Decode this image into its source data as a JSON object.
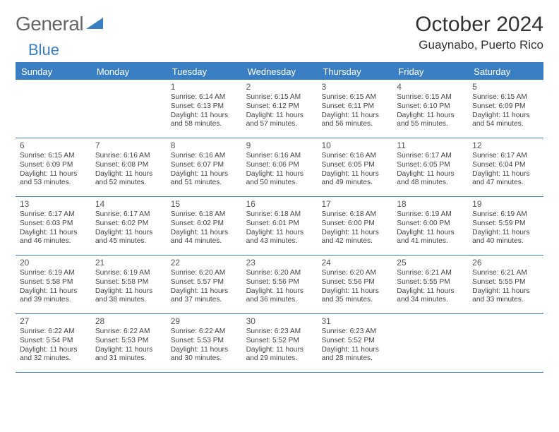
{
  "brand": {
    "part1": "General",
    "part2": "Blue"
  },
  "title": "October 2024",
  "location": "Guaynabo, Puerto Rico",
  "colors": {
    "accent": "#3a7fc4",
    "text": "#333333",
    "background": "#ffffff"
  },
  "day_labels": [
    "Sunday",
    "Monday",
    "Tuesday",
    "Wednesday",
    "Thursday",
    "Friday",
    "Saturday"
  ],
  "weeks": [
    [
      null,
      null,
      {
        "n": "1",
        "sr": "Sunrise: 6:14 AM",
        "ss": "Sunset: 6:13 PM",
        "dl": "Daylight: 11 hours and 58 minutes."
      },
      {
        "n": "2",
        "sr": "Sunrise: 6:15 AM",
        "ss": "Sunset: 6:12 PM",
        "dl": "Daylight: 11 hours and 57 minutes."
      },
      {
        "n": "3",
        "sr": "Sunrise: 6:15 AM",
        "ss": "Sunset: 6:11 PM",
        "dl": "Daylight: 11 hours and 56 minutes."
      },
      {
        "n": "4",
        "sr": "Sunrise: 6:15 AM",
        "ss": "Sunset: 6:10 PM",
        "dl": "Daylight: 11 hours and 55 minutes."
      },
      {
        "n": "5",
        "sr": "Sunrise: 6:15 AM",
        "ss": "Sunset: 6:09 PM",
        "dl": "Daylight: 11 hours and 54 minutes."
      }
    ],
    [
      {
        "n": "6",
        "sr": "Sunrise: 6:15 AM",
        "ss": "Sunset: 6:09 PM",
        "dl": "Daylight: 11 hours and 53 minutes."
      },
      {
        "n": "7",
        "sr": "Sunrise: 6:16 AM",
        "ss": "Sunset: 6:08 PM",
        "dl": "Daylight: 11 hours and 52 minutes."
      },
      {
        "n": "8",
        "sr": "Sunrise: 6:16 AM",
        "ss": "Sunset: 6:07 PM",
        "dl": "Daylight: 11 hours and 51 minutes."
      },
      {
        "n": "9",
        "sr": "Sunrise: 6:16 AM",
        "ss": "Sunset: 6:06 PM",
        "dl": "Daylight: 11 hours and 50 minutes."
      },
      {
        "n": "10",
        "sr": "Sunrise: 6:16 AM",
        "ss": "Sunset: 6:05 PM",
        "dl": "Daylight: 11 hours and 49 minutes."
      },
      {
        "n": "11",
        "sr": "Sunrise: 6:17 AM",
        "ss": "Sunset: 6:05 PM",
        "dl": "Daylight: 11 hours and 48 minutes."
      },
      {
        "n": "12",
        "sr": "Sunrise: 6:17 AM",
        "ss": "Sunset: 6:04 PM",
        "dl": "Daylight: 11 hours and 47 minutes."
      }
    ],
    [
      {
        "n": "13",
        "sr": "Sunrise: 6:17 AM",
        "ss": "Sunset: 6:03 PM",
        "dl": "Daylight: 11 hours and 46 minutes."
      },
      {
        "n": "14",
        "sr": "Sunrise: 6:17 AM",
        "ss": "Sunset: 6:02 PM",
        "dl": "Daylight: 11 hours and 45 minutes."
      },
      {
        "n": "15",
        "sr": "Sunrise: 6:18 AM",
        "ss": "Sunset: 6:02 PM",
        "dl": "Daylight: 11 hours and 44 minutes."
      },
      {
        "n": "16",
        "sr": "Sunrise: 6:18 AM",
        "ss": "Sunset: 6:01 PM",
        "dl": "Daylight: 11 hours and 43 minutes."
      },
      {
        "n": "17",
        "sr": "Sunrise: 6:18 AM",
        "ss": "Sunset: 6:00 PM",
        "dl": "Daylight: 11 hours and 42 minutes."
      },
      {
        "n": "18",
        "sr": "Sunrise: 6:19 AM",
        "ss": "Sunset: 6:00 PM",
        "dl": "Daylight: 11 hours and 41 minutes."
      },
      {
        "n": "19",
        "sr": "Sunrise: 6:19 AM",
        "ss": "Sunset: 5:59 PM",
        "dl": "Daylight: 11 hours and 40 minutes."
      }
    ],
    [
      {
        "n": "20",
        "sr": "Sunrise: 6:19 AM",
        "ss": "Sunset: 5:58 PM",
        "dl": "Daylight: 11 hours and 39 minutes."
      },
      {
        "n": "21",
        "sr": "Sunrise: 6:19 AM",
        "ss": "Sunset: 5:58 PM",
        "dl": "Daylight: 11 hours and 38 minutes."
      },
      {
        "n": "22",
        "sr": "Sunrise: 6:20 AM",
        "ss": "Sunset: 5:57 PM",
        "dl": "Daylight: 11 hours and 37 minutes."
      },
      {
        "n": "23",
        "sr": "Sunrise: 6:20 AM",
        "ss": "Sunset: 5:56 PM",
        "dl": "Daylight: 11 hours and 36 minutes."
      },
      {
        "n": "24",
        "sr": "Sunrise: 6:20 AM",
        "ss": "Sunset: 5:56 PM",
        "dl": "Daylight: 11 hours and 35 minutes."
      },
      {
        "n": "25",
        "sr": "Sunrise: 6:21 AM",
        "ss": "Sunset: 5:55 PM",
        "dl": "Daylight: 11 hours and 34 minutes."
      },
      {
        "n": "26",
        "sr": "Sunrise: 6:21 AM",
        "ss": "Sunset: 5:55 PM",
        "dl": "Daylight: 11 hours and 33 minutes."
      }
    ],
    [
      {
        "n": "27",
        "sr": "Sunrise: 6:22 AM",
        "ss": "Sunset: 5:54 PM",
        "dl": "Daylight: 11 hours and 32 minutes."
      },
      {
        "n": "28",
        "sr": "Sunrise: 6:22 AM",
        "ss": "Sunset: 5:53 PM",
        "dl": "Daylight: 11 hours and 31 minutes."
      },
      {
        "n": "29",
        "sr": "Sunrise: 6:22 AM",
        "ss": "Sunset: 5:53 PM",
        "dl": "Daylight: 11 hours and 30 minutes."
      },
      {
        "n": "30",
        "sr": "Sunrise: 6:23 AM",
        "ss": "Sunset: 5:52 PM",
        "dl": "Daylight: 11 hours and 29 minutes."
      },
      {
        "n": "31",
        "sr": "Sunrise: 6:23 AM",
        "ss": "Sunset: 5:52 PM",
        "dl": "Daylight: 11 hours and 28 minutes."
      },
      null,
      null
    ]
  ]
}
